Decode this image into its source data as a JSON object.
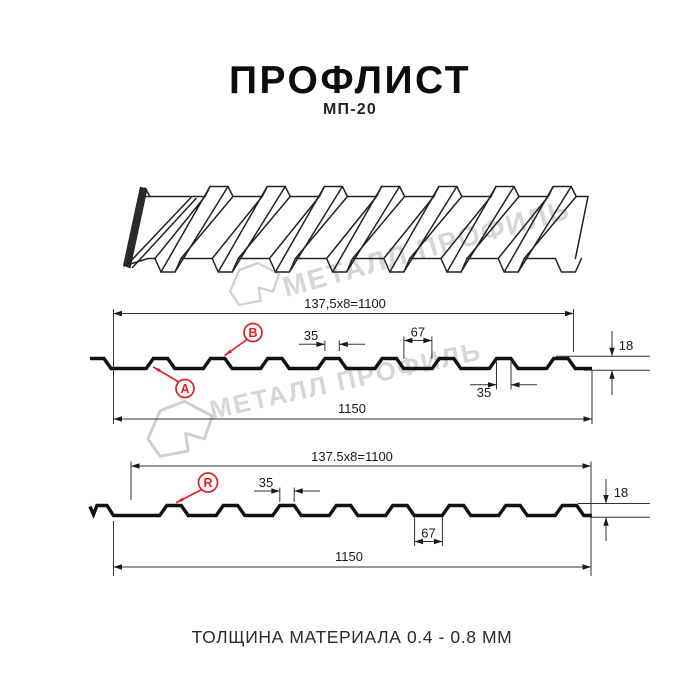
{
  "header": {
    "title": "ПРОФЛИСТ",
    "subtitle": "МП-20"
  },
  "watermark": {
    "text": "МЕТАЛЛ ПРОФИЛЬ"
  },
  "view_front": {
    "dims": {
      "pitch": "137,5x8=1100",
      "rib_top": "35",
      "valley": "67",
      "height": "18",
      "rib_bottom": "35",
      "overall": "1150"
    },
    "callouts": {
      "a": "A",
      "b": "B"
    }
  },
  "view_reverse": {
    "dims": {
      "pitch": "137.5x8=1100",
      "rib_top": "35",
      "valley": "67",
      "height": "18",
      "overall": "1150"
    },
    "callouts": {
      "r": "R"
    }
  },
  "footer": {
    "text": "ТОЛЩИНА МАТЕРИАЛА 0.4 - 0.8 ММ"
  },
  "colors": {
    "accent_red": "#e31e24",
    "line_dark": "#1a1a1a",
    "watermark_gray": "#d6d6d6"
  }
}
